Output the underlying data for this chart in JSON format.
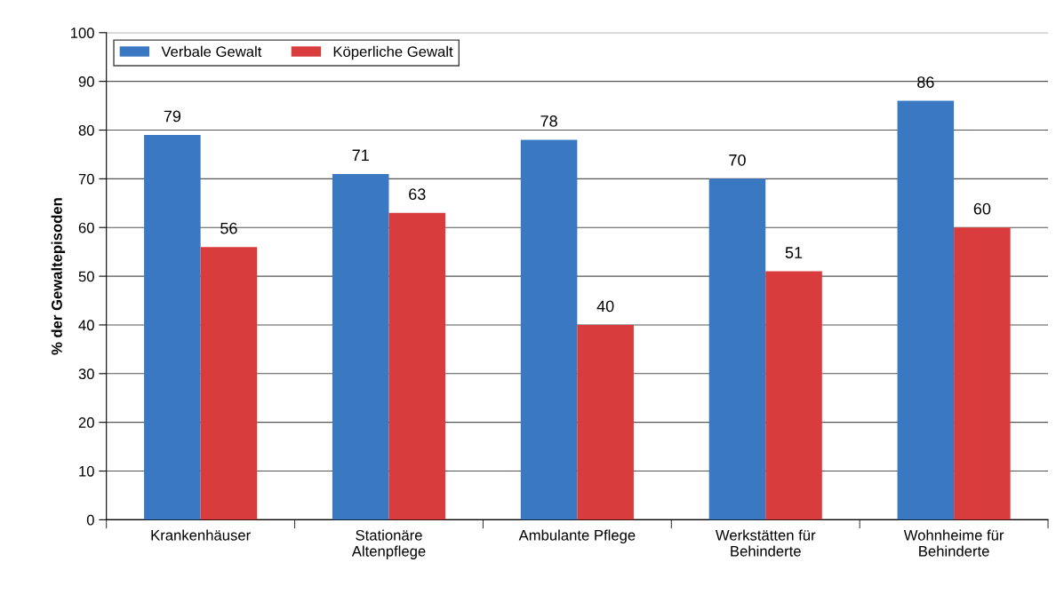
{
  "chart_data": {
    "type": "bar",
    "ylabel": "% der Gewaltepisoden",
    "categories": [
      "Krankenhäuser",
      "Stationäre\nAltenpflege",
      "Ambulante Pflege",
      "Werkstätten für\nBehinderte",
      "Wohnheime für\nBehinderte"
    ],
    "series": [
      {
        "name": "Verbale Gewalt",
        "color": "#3b78c2",
        "values": [
          79,
          71,
          78,
          70,
          86
        ]
      },
      {
        "name": "Köperliche Gewalt",
        "color": "#d83c3c",
        "values": [
          56,
          63,
          40,
          51,
          60
        ]
      }
    ],
    "ylim": [
      0,
      100
    ],
    "yticks": [
      0,
      10,
      20,
      30,
      40,
      50,
      60,
      70,
      80,
      90,
      100
    ],
    "grid": "y",
    "legend": "top left",
    "data_labels": true
  }
}
